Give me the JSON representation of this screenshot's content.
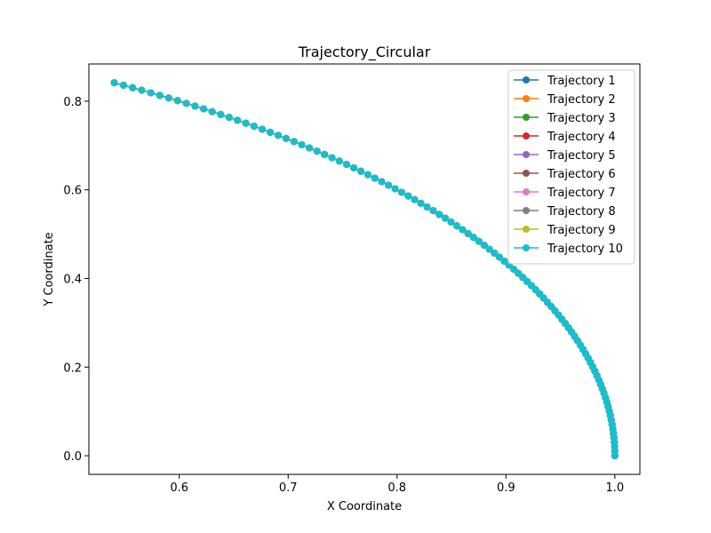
{
  "chart_data": {
    "type": "line",
    "title": "Trajectory_Circular",
    "xlabel": "X Coordinate",
    "ylabel": "Y Coordinate",
    "xlim": [
      0.517,
      1.023
    ],
    "ylim": [
      -0.042,
      0.884
    ],
    "x_ticks": [
      "0.6",
      "0.7",
      "0.8",
      "0.9",
      "1.0"
    ],
    "y_ticks": [
      "0.0",
      "0.2",
      "0.4",
      "0.6",
      "0.8"
    ],
    "grid": false,
    "legend_position": "top-right",
    "marker": "circle",
    "angle_range_radians": [
      0,
      1
    ],
    "num_points": 100,
    "series": [
      {
        "name": "Trajectory 1",
        "color": "#1f77b4"
      },
      {
        "name": "Trajectory 2",
        "color": "#ff7f0e"
      },
      {
        "name": "Trajectory 3",
        "color": "#2ca02c"
      },
      {
        "name": "Trajectory 4",
        "color": "#d62728"
      },
      {
        "name": "Trajectory 5",
        "color": "#9467bd"
      },
      {
        "name": "Trajectory 6",
        "color": "#8c564b"
      },
      {
        "name": "Trajectory 7",
        "color": "#e377c2"
      },
      {
        "name": "Trajectory 8",
        "color": "#7f7f7f"
      },
      {
        "name": "Trajectory 9",
        "color": "#bcbd22"
      },
      {
        "name": "Trajectory 10",
        "color": "#17becf"
      }
    ]
  }
}
